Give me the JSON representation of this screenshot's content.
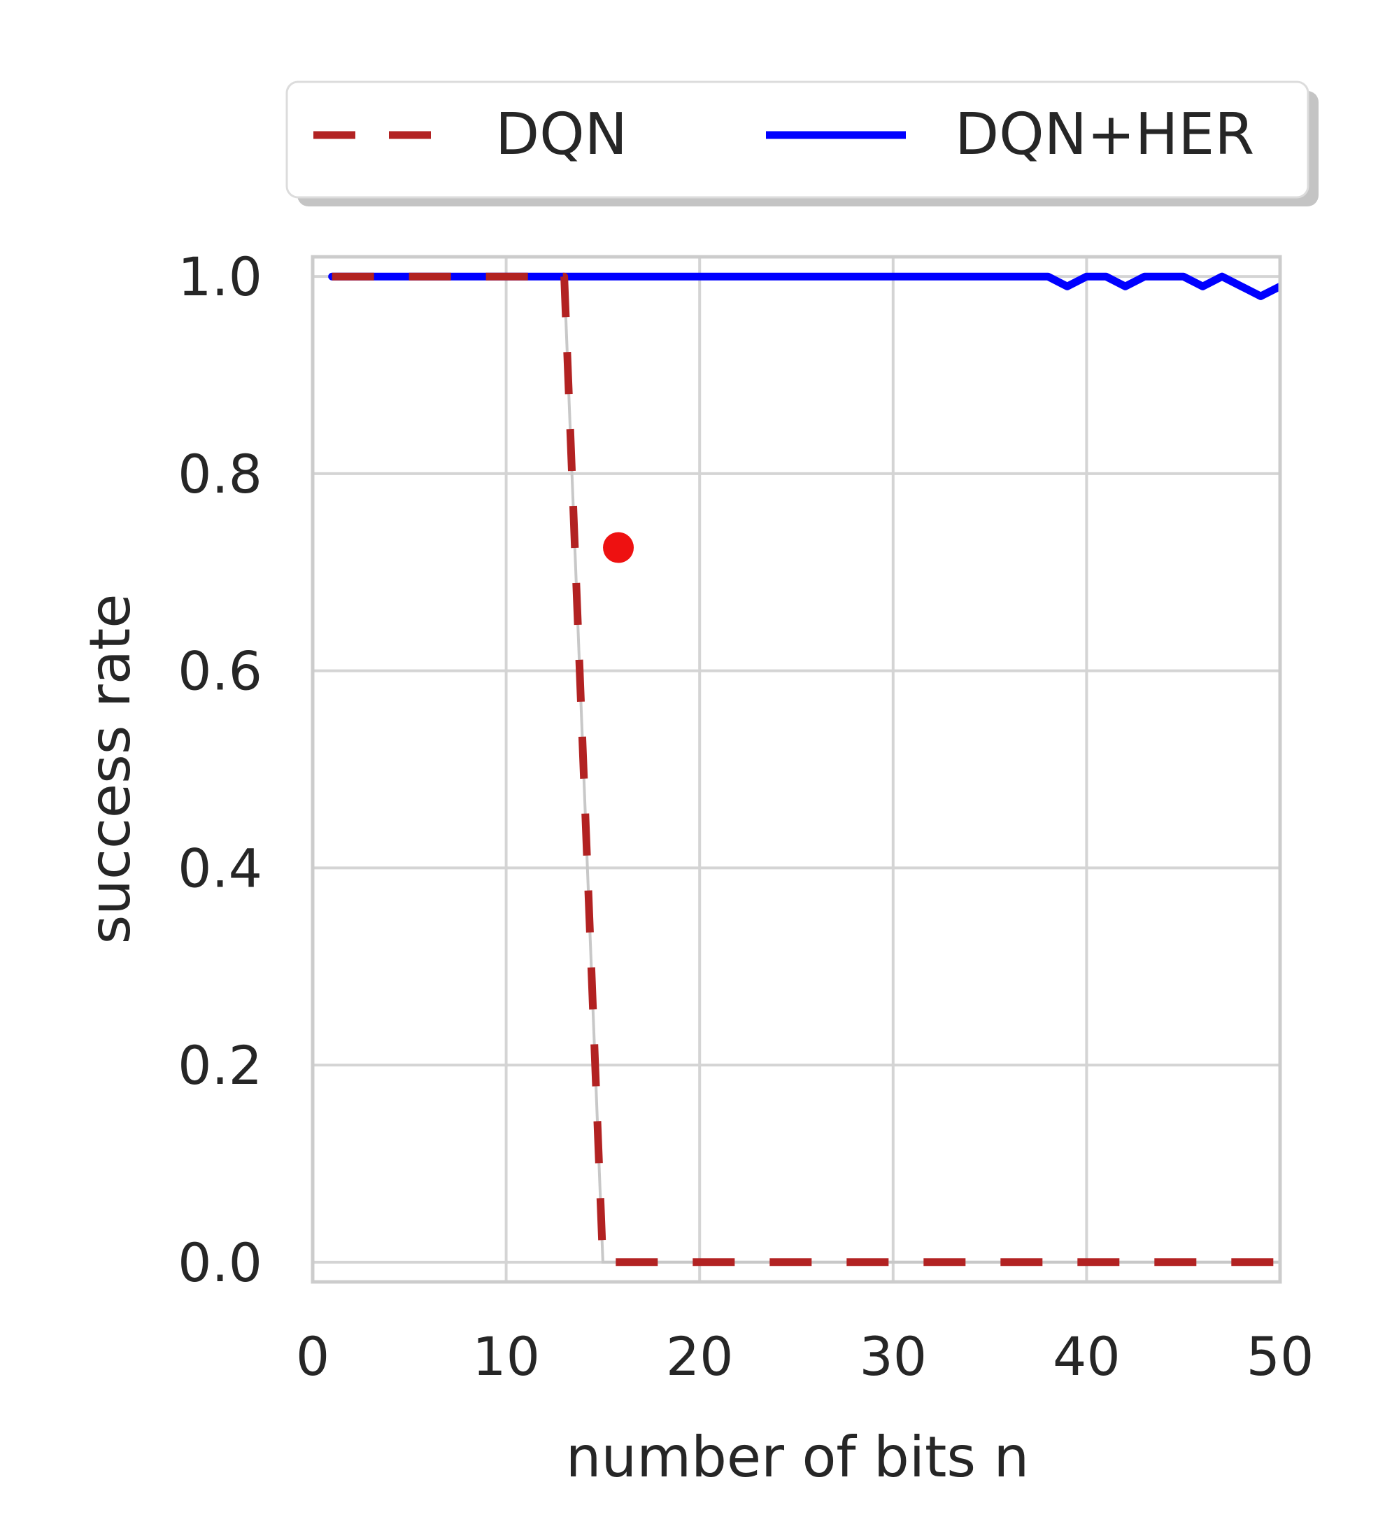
{
  "chart_data": {
    "type": "line",
    "title": "",
    "xlabel": "number of bits n",
    "ylabel": "success rate",
    "xlim": [
      0,
      50
    ],
    "ylim": [
      -0.02,
      1.02
    ],
    "xticks": [
      0,
      10,
      20,
      30,
      40,
      50
    ],
    "yticks": [
      0.0,
      0.2,
      0.4,
      0.6,
      0.8,
      1.0
    ],
    "xtick_labels": [
      "0",
      "10",
      "20",
      "30",
      "40",
      "50"
    ],
    "ytick_labels": [
      "0.0",
      "0.2",
      "0.4",
      "0.6",
      "0.8",
      "1.0"
    ],
    "grid": true,
    "legend_placement": "top",
    "series": [
      {
        "name": "DQN",
        "color": "#b22222",
        "style": "dashed",
        "x": [
          1,
          13,
          15,
          50
        ],
        "y": [
          1.0,
          1.0,
          0.0,
          0.0
        ]
      },
      {
        "name": "DQN+HER",
        "color": "#0000ff",
        "style": "solid",
        "x": [
          1,
          38,
          39,
          40,
          41,
          42,
          43,
          44,
          45,
          46,
          47,
          48,
          49,
          50
        ],
        "y": [
          1.0,
          1.0,
          0.99,
          1.0,
          1.0,
          0.99,
          1.0,
          1.0,
          1.0,
          0.99,
          1.0,
          0.99,
          0.98,
          0.99
        ]
      }
    ],
    "annotations": [
      {
        "type": "marker",
        "color": "#ee1111",
        "x": 15.8,
        "y": 0.725
      }
    ]
  }
}
